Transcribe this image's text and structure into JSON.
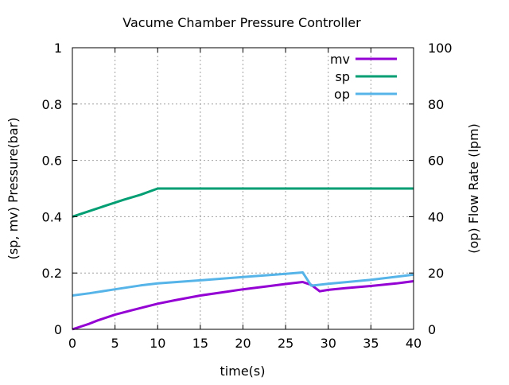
{
  "chart_data": {
    "type": "line",
    "title": "Vacume Chamber Pressure Controller",
    "xlabel": "time(s)",
    "ylabel": "(sp, mv) Pressure(bar)",
    "y2label": "(op) Flow Rate (lpm)",
    "xlim": [
      0,
      40
    ],
    "ylim": [
      0,
      1
    ],
    "y2lim": [
      0,
      100
    ],
    "xticks": [
      "0",
      "5",
      "10",
      "15",
      "20",
      "25",
      "30",
      "35",
      "40"
    ],
    "yticks": [
      "0",
      "0.2",
      "0.4",
      "0.6",
      "0.8",
      "1"
    ],
    "y2ticks": [
      "0",
      "20",
      "40",
      "60",
      "80",
      "100"
    ],
    "grid": true,
    "legend_position": "top-right",
    "series": [
      {
        "name": "mv",
        "axis": "left",
        "color": "#9400d3",
        "x": [
          0,
          1,
          2,
          3,
          5,
          7,
          10,
          12,
          15,
          18,
          20,
          23,
          25,
          27,
          28,
          29,
          30,
          32,
          35,
          38,
          40
        ],
        "y": [
          0,
          0.01,
          0.02,
          0.032,
          0.052,
          0.068,
          0.091,
          0.103,
          0.12,
          0.133,
          0.142,
          0.153,
          0.161,
          0.168,
          0.158,
          0.135,
          0.14,
          0.146,
          0.154,
          0.163,
          0.171
        ]
      },
      {
        "name": "sp",
        "axis": "left",
        "color": "#009e73",
        "x": [
          0,
          2,
          4,
          6,
          8,
          10,
          40
        ],
        "y": [
          0.4,
          0.42,
          0.44,
          0.46,
          0.478,
          0.5,
          0.5
        ]
      },
      {
        "name": "op",
        "axis": "right",
        "color": "#56b4e9",
        "x": [
          0,
          2,
          5,
          8,
          10,
          15,
          20,
          25,
          27,
          28,
          30,
          35,
          40
        ],
        "y": [
          12,
          12.8,
          14.2,
          15.6,
          16.3,
          17.4,
          18.6,
          19.7,
          20.2,
          15.5,
          16.2,
          17.6,
          19.4
        ]
      }
    ]
  }
}
